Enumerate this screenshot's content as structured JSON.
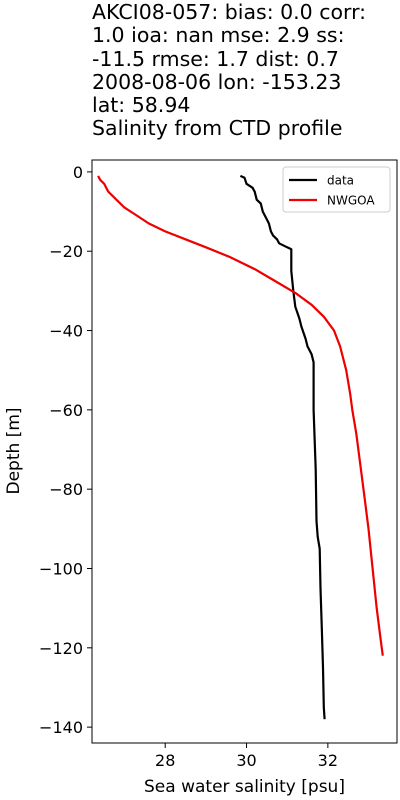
{
  "title_lines": [
    "AKCI08-057: bias: 0.0  corr:",
    "1.0  ioa: nan  mse: 2.9  ss:",
    "-11.5  rmse: 1.7  dist: 0.7",
    "2008-08-06 lon: -153.23",
    "lat: 58.94",
    "Salinity from CTD profile"
  ],
  "chart_data": {
    "type": "line",
    "xlabel": "Sea water salinity [psu]",
    "ylabel": "Depth [m]",
    "xlim": [
      26.2,
      33.7
    ],
    "ylim": [
      -144,
      3
    ],
    "xticks": [
      28,
      30,
      32
    ],
    "yticks": [
      0,
      -20,
      -40,
      -60,
      -80,
      -100,
      -120,
      -140
    ],
    "grid": false,
    "legend_position": "top-right",
    "series": [
      {
        "name": "data",
        "color": "#000000",
        "points": [
          [
            29.85,
            -1
          ],
          [
            29.95,
            -1.5
          ],
          [
            30.0,
            -3
          ],
          [
            30.15,
            -4
          ],
          [
            30.2,
            -5
          ],
          [
            30.25,
            -7
          ],
          [
            30.35,
            -8
          ],
          [
            30.4,
            -10
          ],
          [
            30.45,
            -11
          ],
          [
            30.5,
            -12
          ],
          [
            30.55,
            -13
          ],
          [
            30.6,
            -15
          ],
          [
            30.65,
            -16
          ],
          [
            30.75,
            -17
          ],
          [
            30.8,
            -18
          ],
          [
            31.0,
            -19
          ],
          [
            31.1,
            -19.5
          ],
          [
            31.1,
            -21
          ],
          [
            31.1,
            -25
          ],
          [
            31.15,
            -30
          ],
          [
            31.2,
            -34
          ],
          [
            31.3,
            -37
          ],
          [
            31.35,
            -39
          ],
          [
            31.45,
            -42
          ],
          [
            31.5,
            -44
          ],
          [
            31.6,
            -46
          ],
          [
            31.65,
            -48
          ],
          [
            31.65,
            -60
          ],
          [
            31.7,
            -75
          ],
          [
            31.72,
            -88
          ],
          [
            31.75,
            -92
          ],
          [
            31.8,
            -95
          ],
          [
            31.82,
            -105
          ],
          [
            31.85,
            -115
          ],
          [
            31.88,
            -125
          ],
          [
            31.9,
            -135
          ],
          [
            31.92,
            -138
          ]
        ]
      },
      {
        "name": "NWGOA",
        "color": "#ee0000",
        "points": [
          [
            26.35,
            -1
          ],
          [
            26.4,
            -2
          ],
          [
            26.5,
            -3
          ],
          [
            26.55,
            -4
          ],
          [
            26.6,
            -5
          ],
          [
            26.8,
            -7
          ],
          [
            27.0,
            -9
          ],
          [
            27.3,
            -11
          ],
          [
            27.6,
            -13
          ],
          [
            28.0,
            -15
          ],
          [
            28.5,
            -17
          ],
          [
            29.0,
            -19
          ],
          [
            29.6,
            -21.5
          ],
          [
            30.2,
            -24.5
          ],
          [
            30.7,
            -27.5
          ],
          [
            31.2,
            -30.5
          ],
          [
            31.6,
            -33.5
          ],
          [
            31.9,
            -36.5
          ],
          [
            32.15,
            -40
          ],
          [
            32.3,
            -44
          ],
          [
            32.45,
            -50
          ],
          [
            32.55,
            -56
          ],
          [
            32.6,
            -60
          ],
          [
            32.7,
            -66
          ],
          [
            32.8,
            -74
          ],
          [
            32.9,
            -82
          ],
          [
            33.0,
            -90
          ],
          [
            33.1,
            -100
          ],
          [
            33.2,
            -110
          ],
          [
            33.3,
            -118
          ],
          [
            33.35,
            -122
          ]
        ]
      }
    ]
  }
}
